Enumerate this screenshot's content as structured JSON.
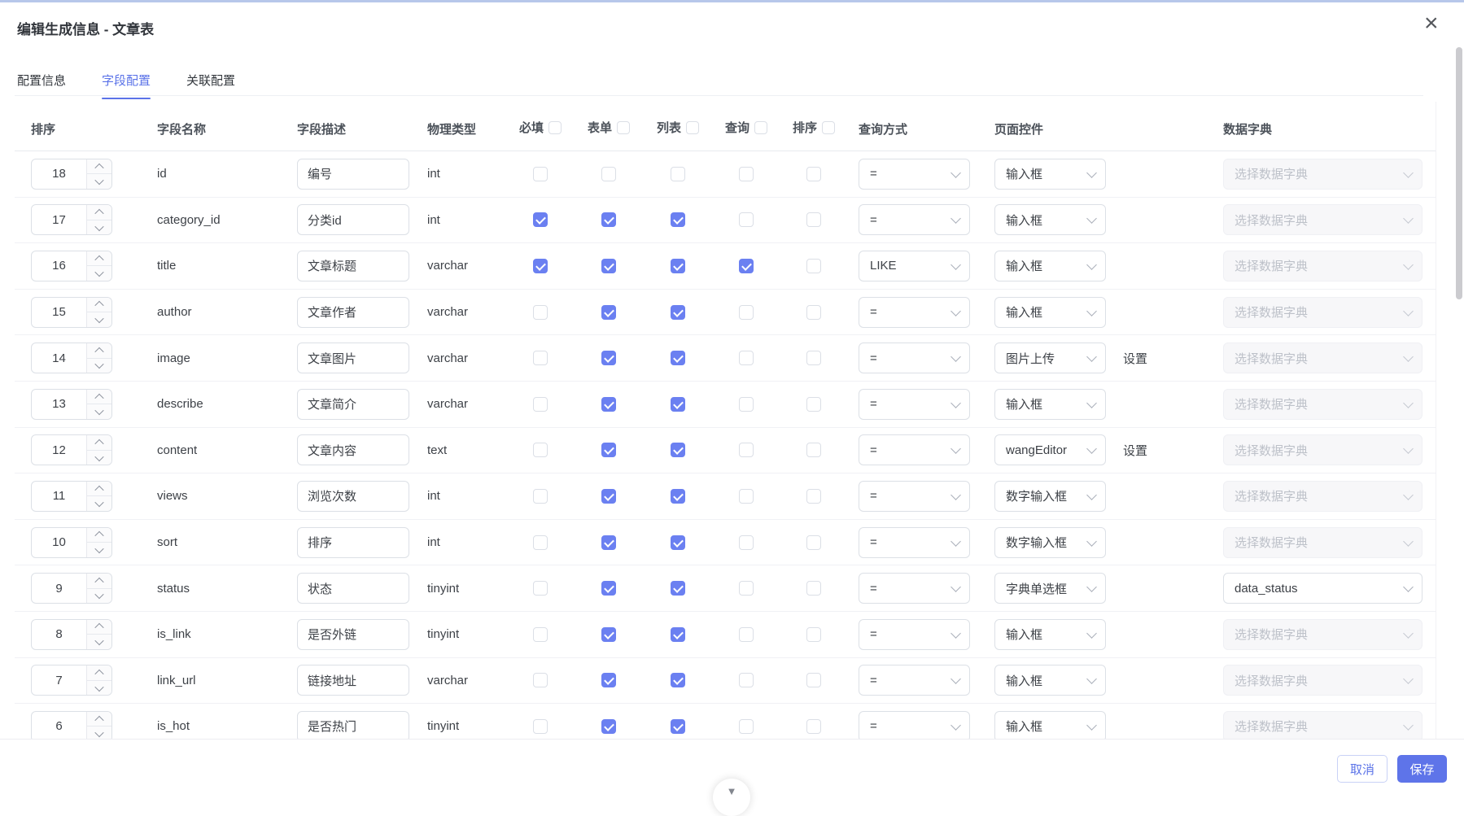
{
  "dialog": {
    "title": "编辑生成信息 - 文章表"
  },
  "icons": {
    "close": "×",
    "scroll_down": "▼"
  },
  "tabs": [
    {
      "label": "配置信息",
      "active": false
    },
    {
      "label": "字段配置",
      "active": true
    },
    {
      "label": "关联配置",
      "active": false
    }
  ],
  "table": {
    "headers": {
      "sort": "排序",
      "field_name": "字段名称",
      "field_desc": "字段描述",
      "physical_type": "物理类型",
      "required": "必填",
      "form": "表单",
      "list": "列表",
      "query": "查询",
      "order": "排序",
      "query_method": "查询方式",
      "page_control": "页面控件",
      "data_dict": "数据字典"
    },
    "dict_placeholder": "选择数据字典",
    "settings_label": "设置",
    "rows": [
      {
        "sort": 18,
        "name": "id",
        "desc": "编号",
        "type": "int",
        "required": false,
        "form": false,
        "list": false,
        "query": false,
        "order": false,
        "qm": "=",
        "control": "输入框",
        "settings": false,
        "dict": null
      },
      {
        "sort": 17,
        "name": "category_id",
        "desc": "分类id",
        "type": "int",
        "required": true,
        "form": true,
        "list": true,
        "query": false,
        "order": false,
        "qm": "=",
        "control": "输入框",
        "settings": false,
        "dict": null
      },
      {
        "sort": 16,
        "name": "title",
        "desc": "文章标题",
        "type": "varchar",
        "required": true,
        "form": true,
        "list": true,
        "query": true,
        "order": false,
        "qm": "LIKE",
        "control": "输入框",
        "settings": false,
        "dict": null
      },
      {
        "sort": 15,
        "name": "author",
        "desc": "文章作者",
        "type": "varchar",
        "required": false,
        "form": true,
        "list": true,
        "query": false,
        "order": false,
        "qm": "=",
        "control": "输入框",
        "settings": false,
        "dict": null
      },
      {
        "sort": 14,
        "name": "image",
        "desc": "文章图片",
        "type": "varchar",
        "required": false,
        "form": true,
        "list": true,
        "query": false,
        "order": false,
        "qm": "=",
        "control": "图片上传",
        "settings": true,
        "dict": null
      },
      {
        "sort": 13,
        "name": "describe",
        "desc": "文章简介",
        "type": "varchar",
        "required": false,
        "form": true,
        "list": true,
        "query": false,
        "order": false,
        "qm": "=",
        "control": "输入框",
        "settings": false,
        "dict": null
      },
      {
        "sort": 12,
        "name": "content",
        "desc": "文章内容",
        "type": "text",
        "required": false,
        "form": true,
        "list": true,
        "query": false,
        "order": false,
        "qm": "=",
        "control": "wangEditor",
        "settings": true,
        "dict": null
      },
      {
        "sort": 11,
        "name": "views",
        "desc": "浏览次数",
        "type": "int",
        "required": false,
        "form": true,
        "list": true,
        "query": false,
        "order": false,
        "qm": "=",
        "control": "数字输入框",
        "settings": false,
        "dict": null
      },
      {
        "sort": 10,
        "name": "sort",
        "desc": "排序",
        "type": "int",
        "required": false,
        "form": true,
        "list": true,
        "query": false,
        "order": false,
        "qm": "=",
        "control": "数字输入框",
        "settings": false,
        "dict": null
      },
      {
        "sort": 9,
        "name": "status",
        "desc": "状态",
        "type": "tinyint",
        "required": false,
        "form": true,
        "list": true,
        "query": false,
        "order": false,
        "qm": "=",
        "control": "字典单选框",
        "settings": false,
        "dict": "data_status"
      },
      {
        "sort": 8,
        "name": "is_link",
        "desc": "是否外链",
        "type": "tinyint",
        "required": false,
        "form": true,
        "list": true,
        "query": false,
        "order": false,
        "qm": "=",
        "control": "输入框",
        "settings": false,
        "dict": null
      },
      {
        "sort": 7,
        "name": "link_url",
        "desc": "链接地址",
        "type": "varchar",
        "required": false,
        "form": true,
        "list": true,
        "query": false,
        "order": false,
        "qm": "=",
        "control": "输入框",
        "settings": false,
        "dict": null
      },
      {
        "sort": 6,
        "name": "is_hot",
        "desc": "是否热门",
        "type": "tinyint",
        "required": false,
        "form": true,
        "list": true,
        "query": false,
        "order": false,
        "qm": "=",
        "control": "输入框",
        "settings": false,
        "dict": null
      }
    ]
  },
  "footer": {
    "cancel": "取消",
    "save": "保存"
  },
  "colors": {
    "primary": "#5b73e8",
    "checkbox_checked": "#6b80f1",
    "save_button_bg": "#5e74e9",
    "top_accent": "#b7c7ea",
    "disabled_select_bg": "#f7f7f9"
  }
}
